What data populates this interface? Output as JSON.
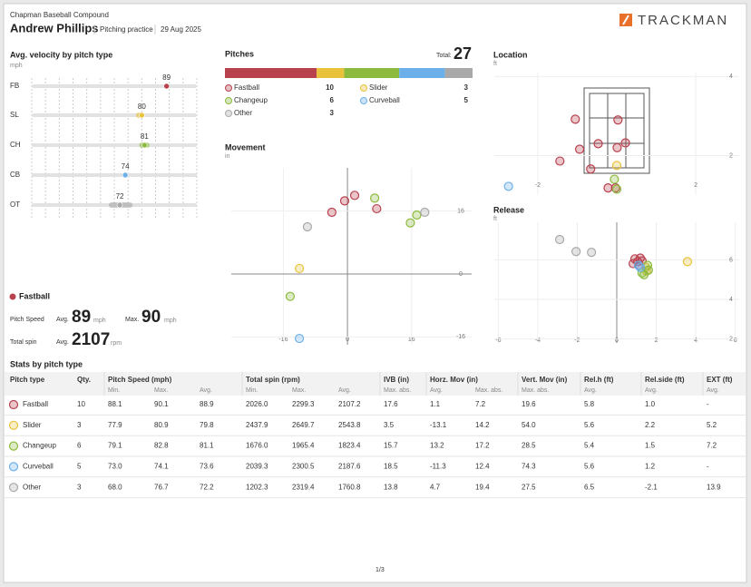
{
  "header": {
    "org": "Chapman Baseball Compound",
    "player": "Andrew Phillips",
    "session": "Pitching practice",
    "date": "29 Aug 2025",
    "brand": "TRACKMAN"
  },
  "pitch_types": [
    {
      "name": "Fastball",
      "abbr": "FB",
      "color": "#b8414e",
      "count": 10
    },
    {
      "name": "Slider",
      "abbr": "SL",
      "color": "#e9c23b",
      "count": 3
    },
    {
      "name": "Changeup",
      "abbr": "CH",
      "color": "#8cba3e",
      "count": 6
    },
    {
      "name": "Curveball",
      "abbr": "CB",
      "color": "#6cb0ea",
      "count": 5
    },
    {
      "name": "Other",
      "abbr": "OT",
      "color": "#a9a9a9",
      "count": 3
    }
  ],
  "velocity": {
    "title": "Avg. velocity by pitch type",
    "unit": "mph",
    "values": [
      89,
      80,
      81,
      74,
      72
    ],
    "xlim": [
      40,
      100
    ],
    "xticks": [
      40,
      45,
      50,
      55,
      60,
      65,
      70,
      75,
      80,
      85,
      90,
      95,
      100
    ]
  },
  "pitches": {
    "title": "Pitches",
    "total_label": "Total:",
    "total": 27
  },
  "detail": {
    "name": "Fastball",
    "speed_label": "Pitch Speed",
    "avg_label": "Avg.",
    "speed_avg": 89,
    "speed_unit": "mph",
    "max_label": "Max.",
    "speed_max": 90,
    "spin_label": "Total spin",
    "spin_avg": 2107,
    "spin_unit": "rpm"
  },
  "movement": {
    "title": "Movement",
    "unit": "in",
    "xlim": [
      -29,
      31
    ],
    "ylim": [
      -18,
      27
    ],
    "xticks": [
      -16,
      0,
      16
    ],
    "yticks": [
      -16,
      0,
      16
    ],
    "series": [
      {
        "x": [
          -0.7,
          1.8,
          -3.9,
          7.3
        ],
        "y": [
          18.6,
          20,
          15.7,
          16.6
        ]
      },
      {
        "x": [
          -12
        ],
        "y": [
          1.4
        ]
      },
      {
        "x": [
          6.8,
          17.3,
          15.7,
          -14.3
        ],
        "y": [
          19.3,
          15,
          13,
          -5.7
        ]
      },
      {
        "x": [
          -12
        ],
        "y": [
          -16.4
        ]
      },
      {
        "x": [
          -10,
          19.3
        ],
        "y": [
          12,
          15.7
        ]
      }
    ]
  },
  "location": {
    "title": "Location",
    "unit": "ft",
    "xlim": [
      -3.1,
      3.1
    ],
    "ylim": [
      1,
      4.1
    ],
    "xticks": [
      -2,
      2
    ],
    "yticks": [
      2,
      4
    ],
    "series": [
      {
        "x": [
          -1.05,
          0.03,
          -0.47,
          -0.94,
          0.22,
          0.01,
          -1.44,
          -0.66,
          -0.22,
          -0.03
        ],
        "y": [
          2.92,
          2.9,
          2.3,
          2.16,
          2.32,
          2.2,
          1.86,
          1.66,
          1.18,
          1.18
        ]
      },
      {
        "x": [
          0
        ],
        "y": [
          1.75
        ]
      },
      {
        "x": [
          -0.06,
          0
        ],
        "y": [
          1.4,
          1.15
        ]
      },
      {
        "x": [
          -2.74
        ],
        "y": [
          1.22
        ]
      },
      {
        "x": [],
        "y": []
      }
    ]
  },
  "release": {
    "title": "Release",
    "unit": "ft",
    "xlim": [
      -6.2,
      6.2
    ],
    "ylim": [
      1.8,
      7.9
    ],
    "xticks": [
      -6,
      -4,
      -2,
      0,
      2,
      4,
      6
    ],
    "yticks": [
      2,
      4,
      6
    ],
    "series": [
      {
        "x": [
          0.92,
          1.06,
          1.19,
          0.83,
          1.15,
          1.28
        ],
        "y": [
          6.05,
          5.91,
          6.09,
          5.81,
          5.72,
          5.95
        ]
      },
      {
        "x": [
          3.58,
          1.47,
          1.51
        ],
        "y": [
          5.91,
          5.62,
          5.44
        ]
      },
      {
        "x": [
          1.56,
          1.38,
          1.6,
          1.28
        ],
        "y": [
          5.72,
          5.25,
          5.48,
          5.34
        ]
      },
      {
        "x": [
          1.1,
          1.19
        ],
        "y": [
          5.72,
          5.62
        ]
      },
      {
        "x": [
          -2.89,
          -2.06,
          -1.28
        ],
        "y": [
          7.03,
          6.42,
          6.38
        ]
      }
    ]
  },
  "stats": {
    "title": "Stats by pitch type",
    "header": [
      "Pitch type",
      "Qty.",
      "Pitch Speed (mph)",
      "Total spin (rpm)",
      "IVB (in)",
      "Horz. Mov (in)",
      "Vert. Mov (in)",
      "Rel.h (ft)",
      "Rel.side (ft)",
      "EXT (ft)"
    ],
    "subheader": [
      "Min.",
      "Max.",
      "Avg.",
      "Min.",
      "Max.",
      "Avg.",
      "Max. abs.",
      "Avg.",
      "Max. abs.",
      "Max. abs.",
      "Avg.",
      "Avg.",
      "Avg."
    ],
    "rows": [
      [
        "88.1",
        "90.1",
        "88.9",
        "2026.0",
        "2299.3",
        "2107.2",
        "17.6",
        "1.1",
        "7.2",
        "19.6",
        "5.8",
        "1.0",
        "-"
      ],
      [
        "77.9",
        "80.9",
        "79.8",
        "2437.9",
        "2649.7",
        "2543.8",
        "3.5",
        "-13.1",
        "14.2",
        "54.0",
        "5.6",
        "2.2",
        "5.2"
      ],
      [
        "79.1",
        "82.8",
        "81.1",
        "1676.0",
        "1965.4",
        "1823.4",
        "15.7",
        "13.2",
        "17.2",
        "28.5",
        "5.4",
        "1.5",
        "7.2"
      ],
      [
        "73.0",
        "74.1",
        "73.6",
        "2039.3",
        "2300.5",
        "2187.6",
        "18.5",
        "-11.3",
        "12.4",
        "74.3",
        "5.6",
        "1.2",
        "-"
      ],
      [
        "68.0",
        "76.7",
        "72.2",
        "1202.3",
        "2319.4",
        "1760.8",
        "13.8",
        "4.7",
        "19.4",
        "27.5",
        "6.5",
        "-2.1",
        "13.9"
      ]
    ]
  },
  "footer": {
    "page": "1/3"
  }
}
